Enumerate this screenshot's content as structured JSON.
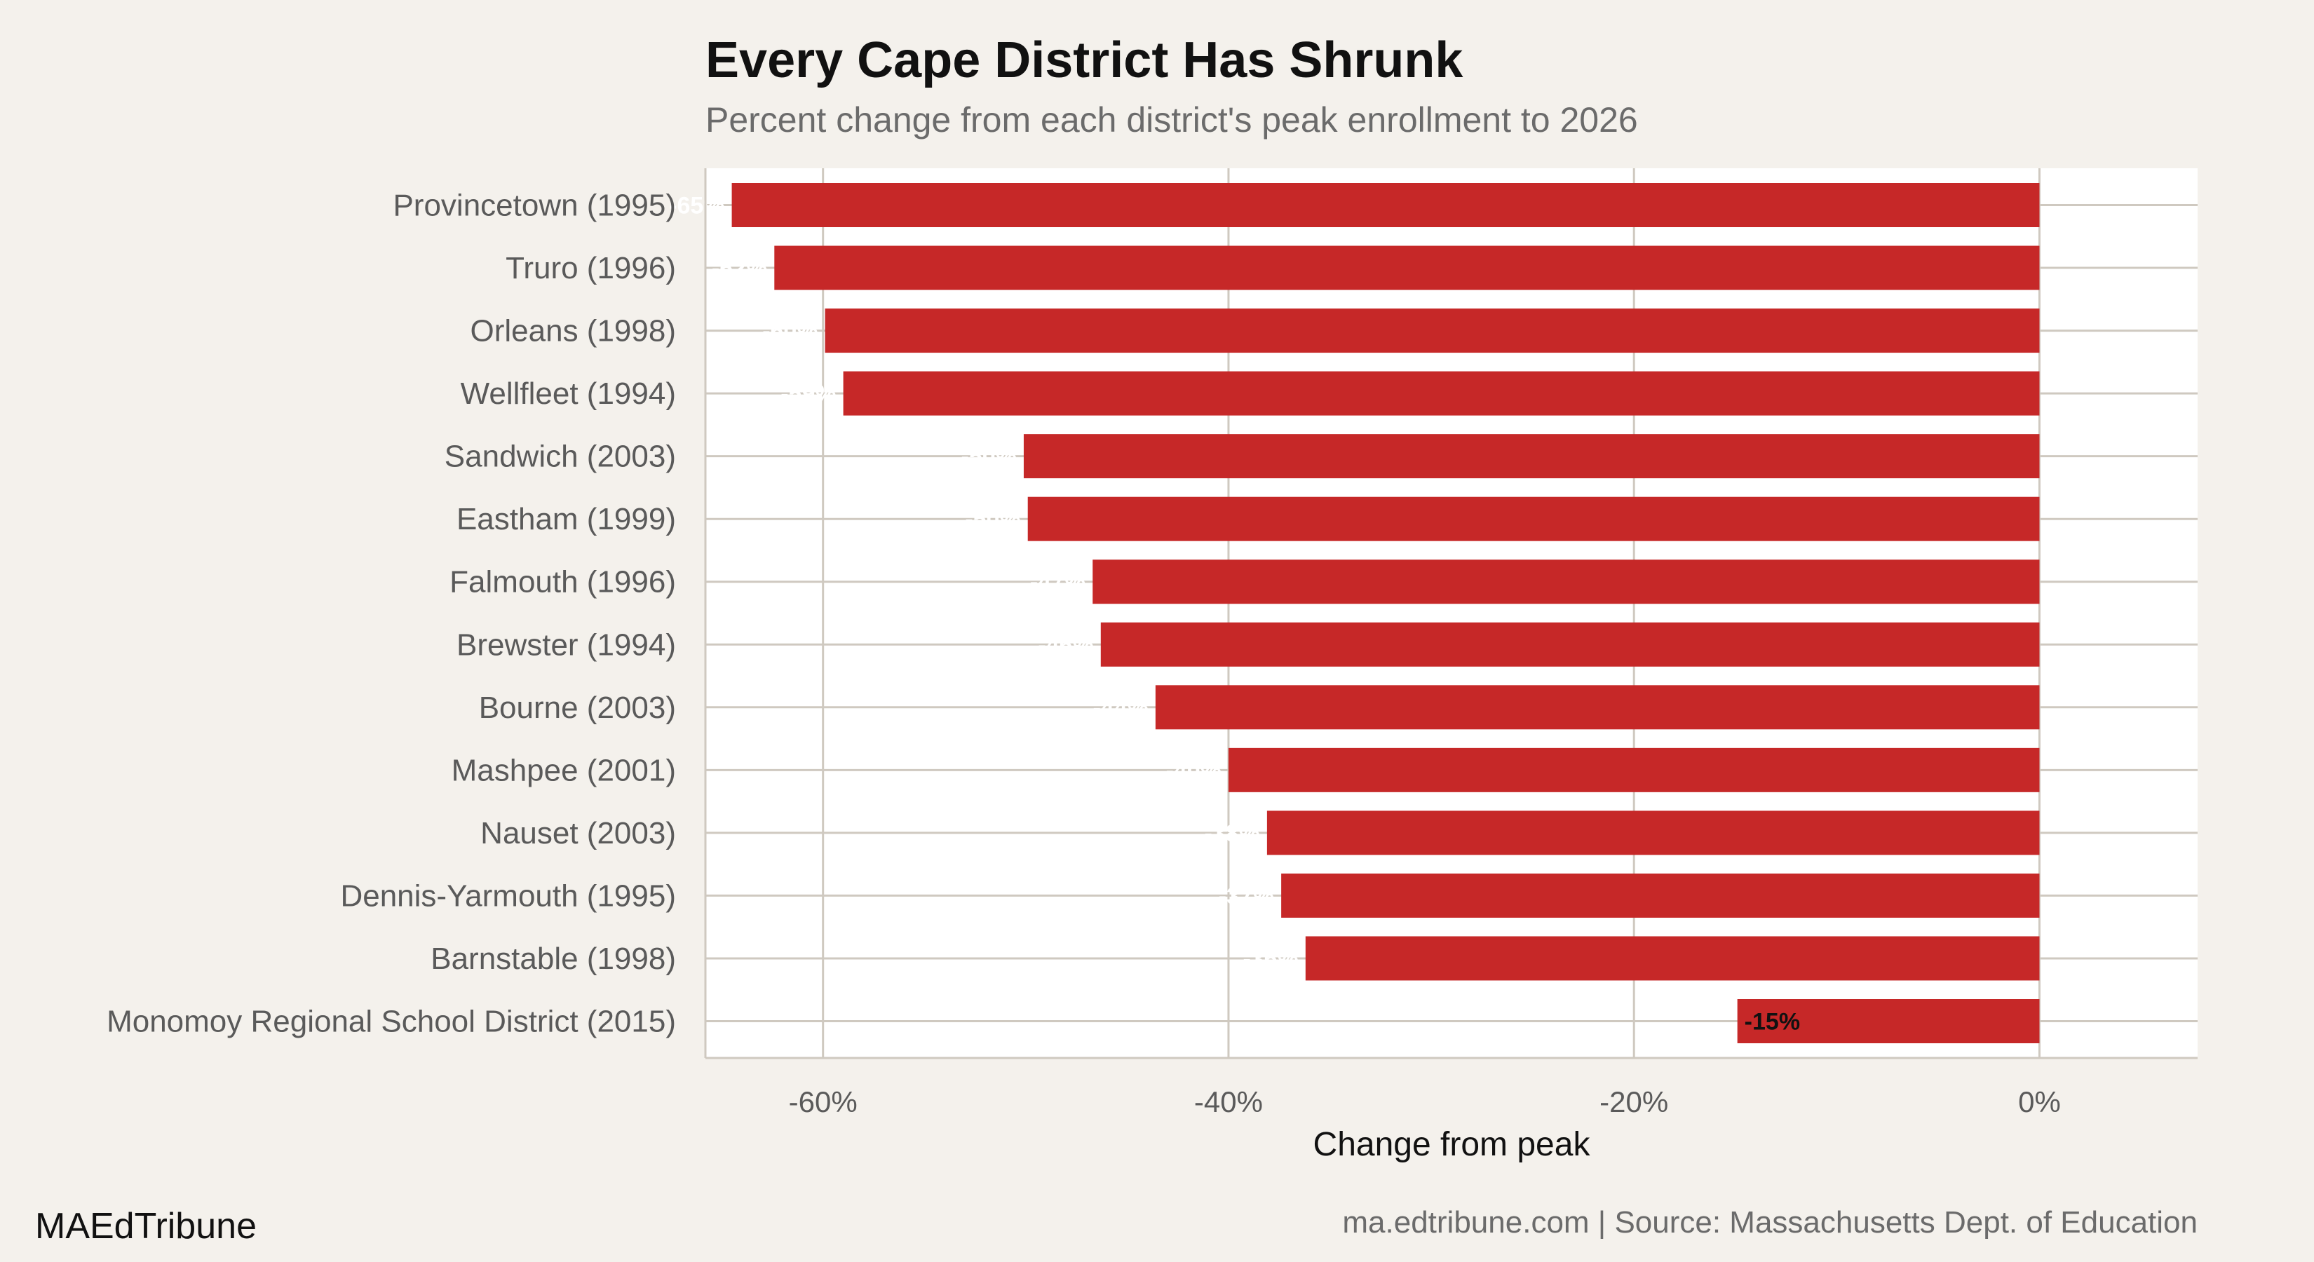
{
  "chart_data": {
    "type": "bar",
    "orientation": "horizontal",
    "title": "Every Cape District Has Shrunk",
    "subtitle": "Percent change from each district's peak enrollment to 2026",
    "xlabel": "Change from peak",
    "ylabel": "",
    "xlim": [
      -65.8,
      7.8
    ],
    "xticks": [
      -60,
      -40,
      -20,
      0
    ],
    "xtick_labels": [
      "-60%",
      "-40%",
      "-20%",
      "0%"
    ],
    "grid": true,
    "categories": [
      "Provincetown (1995)",
      "Truro (1996)",
      "Orleans (1998)",
      "Wellfleet (1994)",
      "Sandwich (2003)",
      "Eastham (1999)",
      "Falmouth (1996)",
      "Brewster (1994)",
      "Bourne (2003)",
      "Mashpee (2001)",
      "Nauset (2003)",
      "Dennis-Yarmouth (1995)",
      "Barnstable (1998)",
      "Monomoy Regional School District (2015)"
    ],
    "values": [
      -64.5,
      -62.4,
      -59.9,
      -59.0,
      -50.1,
      -49.9,
      -46.7,
      -46.3,
      -43.6,
      -40.0,
      -38.1,
      -37.4,
      -36.2,
      -14.9
    ],
    "data_labels": [
      "-65%",
      "-62%",
      "-60%",
      "-59%",
      "-50%",
      "-50%",
      "-47%",
      "-46%",
      "-44%",
      "-40%",
      "-38%",
      "-37%",
      "-36%",
      "-15%"
    ],
    "bar_color": "#c62828",
    "label_colors": [
      "#ffffff",
      "#ffffff",
      "#ffffff",
      "#ffffff",
      "#ffffff",
      "#ffffff",
      "#ffffff",
      "#ffffff",
      "#ffffff",
      "#ffffff",
      "#ffffff",
      "#ffffff",
      "#ffffff",
      "#111111"
    ]
  },
  "footer": {
    "brand": "MAEdTribune",
    "source": "ma.edtribune.com | Source: Massachusetts Dept. of Education"
  },
  "colors": {
    "background": "#f4f1ec",
    "panel": "#ffffff",
    "grid": "#cfc9c0"
  }
}
